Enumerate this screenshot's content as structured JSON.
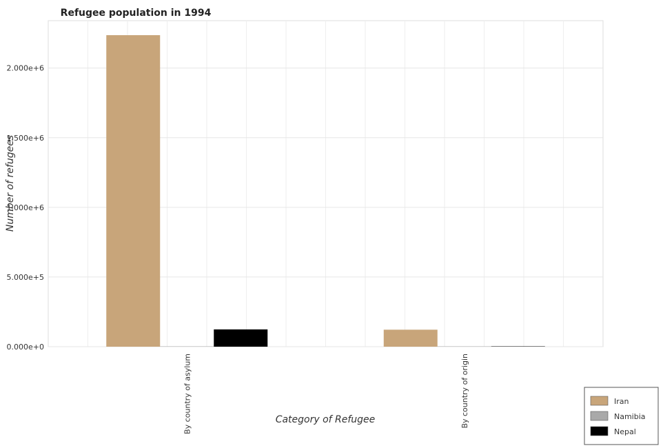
{
  "chart_data": {
    "type": "bar",
    "title": "Refugee population in 1994",
    "xlabel": "Category of Refugee",
    "ylabel": "Number of refugees",
    "categories": [
      "By country of asylum",
      "By country of origin"
    ],
    "series": [
      {
        "name": "Iran",
        "color": "#c8a57a",
        "values": [
          2236000,
          122000
        ]
      },
      {
        "name": "Namibia",
        "color": "#a9a9a9",
        "values": [
          1700,
          300
        ]
      },
      {
        "name": "Nepal",
        "color": "#000000",
        "values": [
          124000,
          250
        ]
      }
    ],
    "ylim": [
      0,
      2340000
    ],
    "yticks": [
      0,
      500000,
      1000000,
      1500000,
      2000000
    ],
    "ytick_labels": [
      "0.000e+0",
      "5.000e+5",
      "1.000e+6",
      "1.500e+6",
      "2.000e+6"
    ],
    "grid": true,
    "legend_position": "bottom-right"
  }
}
